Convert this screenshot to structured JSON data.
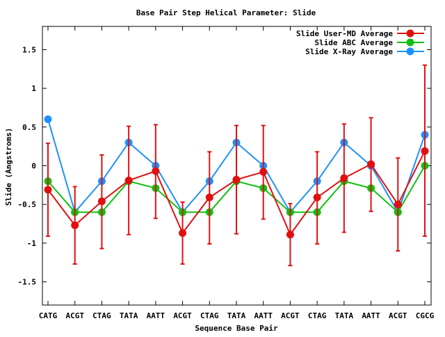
{
  "chart_data": {
    "type": "line",
    "title": "Base Pair Step Helical Parameter: Slide",
    "xlabel": "Sequence Base Pair",
    "ylabel": "Slide (Angstroms)",
    "ylim": [
      -1.8,
      1.8
    ],
    "yticks": [
      1.5,
      1,
      0.5,
      0,
      -0.5,
      -1,
      -1.5
    ],
    "ytick_labels": [
      "1.5",
      "1",
      "0.5",
      "0",
      "-0.5",
      "-1",
      "-1.5"
    ],
    "grid": false,
    "legend_position": "top-right",
    "categories": [
      "CATG",
      "ACGT",
      "CTAG",
      "TATA",
      "AATT",
      "ACGT",
      "CTAG",
      "TATA",
      "AATT",
      "ACGT",
      "CTAG",
      "TATA",
      "AATT",
      "ACGT",
      "CGCG"
    ],
    "series": [
      {
        "name": "Slide User-MD Average",
        "color": "#e01010",
        "values": [
          -0.31,
          -0.77,
          -0.46,
          -0.19,
          -0.07,
          -0.87,
          -0.41,
          -0.18,
          -0.08,
          -0.89,
          -0.41,
          -0.16,
          0.02,
          -0.5,
          0.19
        ],
        "error_low": [
          -0.91,
          -1.27,
          -1.07,
          -0.89,
          -0.68,
          -1.27,
          -1.01,
          -0.88,
          -0.69,
          -1.29,
          -1.01,
          -0.86,
          -0.59,
          -1.1,
          -0.91
        ],
        "error_high": [
          0.29,
          -0.27,
          0.14,
          0.51,
          0.53,
          -0.47,
          0.18,
          0.52,
          0.52,
          -0.49,
          0.18,
          0.54,
          0.62,
          0.1,
          1.3
        ]
      },
      {
        "name": "Slide ABC Average",
        "color": "#10c010",
        "values": [
          -0.2,
          -0.6,
          -0.6,
          -0.2,
          -0.29,
          -0.6,
          -0.6,
          -0.2,
          -0.29,
          -0.6,
          -0.6,
          -0.2,
          -0.29,
          -0.6,
          0.0
        ]
      },
      {
        "name": "Slide X-Ray Average",
        "color": "#1e90ff",
        "values": [
          0.6,
          -0.6,
          -0.2,
          0.3,
          0.0,
          -0.6,
          -0.2,
          0.3,
          0.0,
          -0.6,
          -0.2,
          0.3,
          0.0,
          -0.6,
          0.4
        ]
      }
    ]
  }
}
